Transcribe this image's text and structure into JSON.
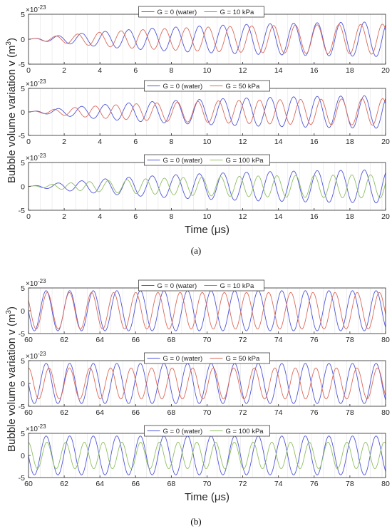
{
  "captions": [
    "(a)",
    "(b)"
  ],
  "ylabel": "Bubble volume variation v (m³)",
  "ylabel_main": "Bubble volume variation v (m",
  "ylabel_unit_sup": "3",
  "ylabel_close": ")",
  "xlabel": "Time (μs)",
  "exponent_label": "×10",
  "exponent_power": "-23",
  "colors": {
    "water": "#4f55d6",
    "g10": "#d96a5a",
    "g50": "#d96a5a",
    "g100": "#8fbf62"
  },
  "chart_data": [
    {
      "panel": "a1",
      "type": "line",
      "xlim": [
        0,
        20
      ],
      "ylim": [
        -5,
        5
      ],
      "xticks": [
        0,
        2,
        4,
        6,
        8,
        10,
        12,
        14,
        16,
        18,
        20
      ],
      "yticks": [
        -5,
        0,
        5
      ],
      "y_multiplier": "1e-23",
      "grid": "vertical",
      "legend": "top-center",
      "series": [
        {
          "name": "G = 0 (water)",
          "color": "#4f55d6",
          "period_us": 1.32,
          "amp_max": 3.8,
          "growth_tau_us": 8,
          "phase": 0
        },
        {
          "name": "G = 10 kPa",
          "color": "#d96a5a",
          "period_us": 1.22,
          "amp_max": 3.2,
          "growth_tau_us": 7,
          "phase": 0
        }
      ]
    },
    {
      "panel": "a2",
      "type": "line",
      "xlim": [
        0,
        20
      ],
      "ylim": [
        -5,
        5
      ],
      "xticks": [
        0,
        2,
        4,
        6,
        8,
        10,
        12,
        14,
        16,
        18,
        20
      ],
      "yticks": [
        -5,
        0,
        5
      ],
      "y_multiplier": "1e-23",
      "grid": "vertical",
      "legend": "top-center",
      "series": [
        {
          "name": "G = 0 (water)",
          "color": "#4f55d6",
          "period_us": 1.32,
          "amp_max": 3.8,
          "growth_tau_us": 8,
          "phase": 0
        },
        {
          "name": "G = 50 kPa",
          "color": "#d96a5a",
          "period_us": 1.15,
          "amp_max": 3.0,
          "growth_tau_us": 7,
          "phase": 0
        }
      ]
    },
    {
      "panel": "a3",
      "type": "line",
      "xlim": [
        0,
        20
      ],
      "ylim": [
        -5,
        5
      ],
      "xticks": [
        0,
        2,
        4,
        6,
        8,
        10,
        12,
        14,
        16,
        18,
        20
      ],
      "yticks": [
        -5,
        0,
        5
      ],
      "y_multiplier": "1e-23",
      "grid": "vertical",
      "legend": "top-center",
      "series": [
        {
          "name": "G = 0 (water)",
          "color": "#4f55d6",
          "period_us": 1.32,
          "amp_max": 3.8,
          "growth_tau_us": 8,
          "phase": 0
        },
        {
          "name": "G = 100 kPa",
          "color": "#8fbf62",
          "period_us": 1.05,
          "amp_max": 2.6,
          "growth_tau_us": 7,
          "phase": 0
        }
      ]
    },
    {
      "panel": "b1",
      "type": "line",
      "xlim": [
        60,
        80
      ],
      "ylim": [
        -5,
        5
      ],
      "xticks": [
        60,
        62,
        64,
        66,
        68,
        70,
        72,
        74,
        76,
        78,
        80
      ],
      "yticks": [
        -5,
        0,
        5
      ],
      "y_multiplier": "1e-23",
      "grid": "vertical",
      "legend": "top-center",
      "series": [
        {
          "name": "G = 0 (water)",
          "color": "#4f55d6",
          "period_us": 1.32,
          "amp_max": 4.4,
          "growth_tau_us": 0,
          "phase": 0.3
        },
        {
          "name": "G = 10 kPa",
          "color": "#d96a5a",
          "period_us": 1.24,
          "amp_max": 4.0,
          "growth_tau_us": 0,
          "phase": 0.1
        }
      ]
    },
    {
      "panel": "b2",
      "type": "line",
      "xlim": [
        60,
        80
      ],
      "ylim": [
        -5,
        5
      ],
      "xticks": [
        60,
        62,
        64,
        66,
        68,
        70,
        72,
        74,
        76,
        78,
        80
      ],
      "yticks": [
        -5,
        0,
        5
      ],
      "y_multiplier": "1e-23",
      "grid": "vertical",
      "legend": "top-center",
      "series": [
        {
          "name": "G = 0 (water)",
          "color": "#4f55d6",
          "period_us": 1.32,
          "amp_max": 4.4,
          "growth_tau_us": 0,
          "phase": 0.3
        },
        {
          "name": "G = 50 kPa",
          "color": "#d96a5a",
          "period_us": 1.15,
          "amp_max": 3.4,
          "growth_tau_us": 0,
          "phase": 0.5
        }
      ]
    },
    {
      "panel": "b3",
      "type": "line",
      "xlim": [
        60,
        80
      ],
      "ylim": [
        -5,
        5
      ],
      "xticks": [
        60,
        62,
        64,
        66,
        68,
        70,
        72,
        74,
        76,
        78,
        80
      ],
      "yticks": [
        -5,
        0,
        5
      ],
      "y_multiplier": "1e-23",
      "grid": "vertical",
      "legend": "top-center",
      "series": [
        {
          "name": "G = 0 (water)",
          "color": "#4f55d6",
          "period_us": 1.32,
          "amp_max": 4.4,
          "growth_tau_us": 0,
          "phase": 0.3
        },
        {
          "name": "G = 100 kPa",
          "color": "#8fbf62",
          "period_us": 1.05,
          "amp_max": 3.0,
          "growth_tau_us": 0,
          "phase": 0.8
        }
      ]
    }
  ]
}
